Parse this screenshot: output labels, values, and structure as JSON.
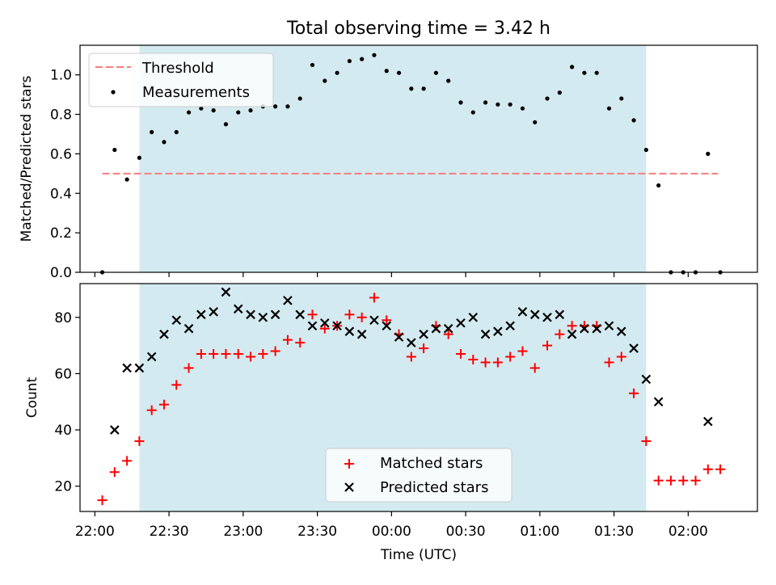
{
  "figure": {
    "title": "Total observing time = 3.42 h",
    "shaded_color": "#d3eaf0",
    "time_start": "2024-01-01T22:00:00",
    "x_range": [
      "21:54",
      "02:28"
    ]
  },
  "chart_data": [
    {
      "type": "scatter",
      "ylabel": "Matched/Predicted stars",
      "ylim": [
        0,
        1.15
      ],
      "yticks": [
        "0.0",
        "0.2",
        "0.4",
        "0.6",
        "0.8",
        "1.0"
      ],
      "ytick_values": [
        0,
        0.2,
        0.4,
        0.6,
        0.8,
        1.0
      ],
      "shaded_x_range": [
        "22:18",
        "01:43"
      ],
      "threshold": {
        "name": "Threshold",
        "value": 0.5,
        "x_range": [
          "22:03",
          "02:12"
        ],
        "color": "#f87e7e"
      },
      "series": [
        {
          "name": "Measurements",
          "color": "#000000",
          "x": [
            "22:03",
            "22:08",
            "22:13",
            "22:18",
            "22:23",
            "22:28",
            "22:33",
            "22:38",
            "22:43",
            "22:48",
            "22:53",
            "22:58",
            "23:03",
            "23:08",
            "23:13",
            "23:18",
            "23:23",
            "23:28",
            "23:33",
            "23:38",
            "23:43",
            "23:48",
            "23:53",
            "23:58",
            "00:03",
            "00:08",
            "00:13",
            "00:18",
            "00:23",
            "00:28",
            "00:33",
            "00:38",
            "00:43",
            "00:48",
            "00:53",
            "00:58",
            "01:03",
            "01:08",
            "01:13",
            "01:18",
            "01:23",
            "01:28",
            "01:33",
            "01:38",
            "01:43",
            "01:48",
            "01:53",
            "01:58",
            "02:03",
            "02:08",
            "02:13"
          ],
          "y": [
            0.0,
            0.62,
            0.47,
            0.58,
            0.71,
            0.66,
            0.71,
            0.81,
            0.83,
            0.82,
            0.75,
            0.81,
            0.82,
            0.84,
            0.84,
            0.84,
            0.88,
            1.05,
            0.97,
            1.01,
            1.07,
            1.08,
            1.1,
            1.02,
            1.01,
            0.93,
            0.93,
            1.01,
            0.97,
            0.86,
            0.81,
            0.86,
            0.85,
            0.85,
            0.83,
            0.76,
            0.88,
            0.91,
            1.04,
            1.01,
            1.01,
            0.83,
            0.88,
            0.77,
            0.62,
            0.44,
            0.0,
            0.0,
            0.0,
            0.6,
            0.0
          ]
        }
      ]
    },
    {
      "type": "scatter",
      "xlabel": "Time (UTC)",
      "ylabel": "Count",
      "ylim": [
        11,
        92
      ],
      "yticks": [
        "20",
        "40",
        "60",
        "80"
      ],
      "ytick_values": [
        20,
        40,
        60,
        80
      ],
      "xticks": [
        "22:00",
        "22:30",
        "23:00",
        "23:30",
        "00:00",
        "00:30",
        "01:00",
        "01:30",
        "02:00"
      ],
      "shaded_x_range": [
        "22:18",
        "01:43"
      ],
      "series": [
        {
          "name": "Matched stars",
          "color": "#ff0000",
          "marker": "+",
          "x": [
            "22:03",
            "22:08",
            "22:13",
            "22:18",
            "22:23",
            "22:28",
            "22:33",
            "22:38",
            "22:43",
            "22:48",
            "22:53",
            "22:58",
            "23:03",
            "23:08",
            "23:13",
            "23:18",
            "23:23",
            "23:28",
            "23:33",
            "23:38",
            "23:43",
            "23:48",
            "23:53",
            "23:58",
            "00:03",
            "00:08",
            "00:13",
            "00:18",
            "00:23",
            "00:28",
            "00:33",
            "00:38",
            "00:43",
            "00:48",
            "00:53",
            "00:58",
            "01:03",
            "01:08",
            "01:13",
            "01:18",
            "01:23",
            "01:28",
            "01:33",
            "01:38",
            "01:43",
            "01:48",
            "01:53",
            "01:58",
            "02:03",
            "02:08",
            "02:13"
          ],
          "y": [
            15,
            25,
            29,
            36,
            47,
            49,
            56,
            62,
            67,
            67,
            67,
            67,
            66,
            67,
            68,
            72,
            71,
            81,
            76,
            77,
            81,
            80,
            87,
            79,
            74,
            66,
            69,
            77,
            74,
            67,
            65,
            64,
            64,
            66,
            68,
            62,
            70,
            74,
            77,
            77,
            77,
            64,
            66,
            53,
            36,
            22,
            22,
            22,
            22,
            26,
            26
          ]
        },
        {
          "name": "Predicted stars",
          "color": "#000000",
          "marker": "x",
          "x": [
            "22:08",
            "22:13",
            "22:18",
            "22:23",
            "22:28",
            "22:33",
            "22:38",
            "22:43",
            "22:48",
            "22:53",
            "22:58",
            "23:03",
            "23:08",
            "23:13",
            "23:18",
            "23:23",
            "23:28",
            "23:33",
            "23:38",
            "23:43",
            "23:48",
            "23:53",
            "23:58",
            "00:03",
            "00:08",
            "00:13",
            "00:18",
            "00:23",
            "00:28",
            "00:33",
            "00:38",
            "00:43",
            "00:48",
            "00:53",
            "00:58",
            "01:03",
            "01:08",
            "01:13",
            "01:18",
            "01:23",
            "01:28",
            "01:33",
            "01:38",
            "01:43",
            "01:48",
            "02:08"
          ],
          "y": [
            40,
            62,
            62,
            66,
            74,
            79,
            76,
            81,
            82,
            89,
            83,
            81,
            80,
            81,
            86,
            81,
            77,
            78,
            77,
            75,
            74,
            79,
            77,
            73,
            71,
            74,
            76,
            76,
            78,
            80,
            74,
            75,
            77,
            82,
            81,
            80,
            81,
            74,
            76,
            76,
            77,
            75,
            69,
            58,
            50,
            43
          ]
        }
      ]
    }
  ]
}
